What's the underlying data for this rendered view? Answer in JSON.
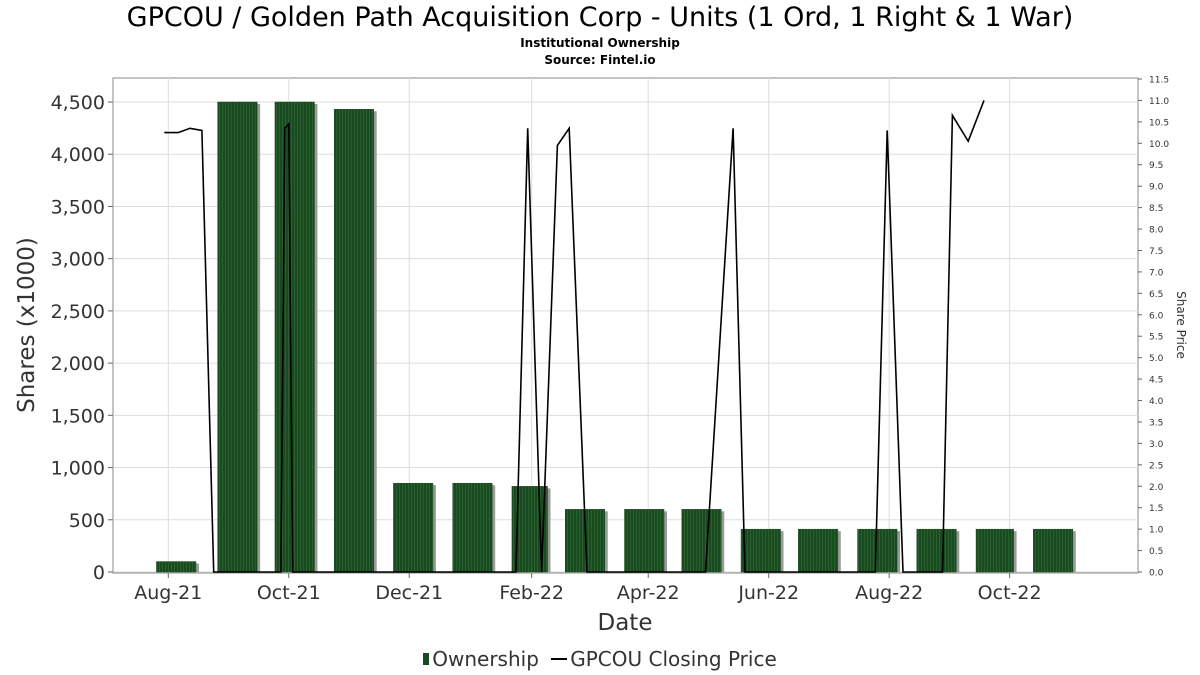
{
  "title": "GPCOU / Golden Path Acquisition Corp - Units (1 Ord, 1 Right & 1 War)",
  "subtitle": "Institutional Ownership",
  "source": "Source: Fintel.io",
  "legend": {
    "ownership": "Ownership",
    "price": "GPCOU Closing Price"
  },
  "colors": {
    "bar": "#1a4a1f",
    "bar_shadow": "#9a9a9a",
    "line": "#000000",
    "grid": "#dddddd"
  },
  "chart_data": {
    "type": "bar",
    "xlabel": "Date",
    "ylabel": "Shares (x1000)",
    "y2label": "Share Price",
    "ylim": [
      0,
      4700
    ],
    "y2lim": [
      0,
      11.5
    ],
    "xlim": [
      "2021-07-04",
      "2022-12-05"
    ],
    "grid": true,
    "legend_position": "bottom",
    "xticks": [
      {
        "date": "2021-08-01",
        "label": "Aug-21"
      },
      {
        "date": "2021-10-01",
        "label": "Oct-21"
      },
      {
        "date": "2021-12-01",
        "label": "Dec-21"
      },
      {
        "date": "2022-02-01",
        "label": "Feb-22"
      },
      {
        "date": "2022-04-01",
        "label": "Apr-22"
      },
      {
        "date": "2022-06-01",
        "label": "Jun-22"
      },
      {
        "date": "2022-08-01",
        "label": "Aug-22"
      },
      {
        "date": "2022-10-01",
        "label": "Oct-22"
      }
    ],
    "yticks": [
      0,
      500,
      1000,
      1500,
      2000,
      2500,
      3000,
      3500,
      4000,
      4500
    ],
    "yticklabels": [
      "0",
      "500",
      "1,000",
      "1,500",
      "2,000",
      "2,500",
      "3,000",
      "3,500",
      "4,000",
      "4,500"
    ],
    "y2ticks": [
      "0.0",
      "0.5",
      "1.0",
      "1.5",
      "2.0",
      "2.5",
      "3.0",
      "3.5",
      "4.0",
      "4.5",
      "5.0",
      "5.5",
      "6.0",
      "6.5",
      "7.0",
      "7.5",
      "8.0",
      "8.5",
      "9.0",
      "9.5",
      "10.0",
      "10.5",
      "11.0",
      "11.5"
    ],
    "series": [
      {
        "name": "Ownership",
        "type": "bar",
        "bars": [
          {
            "start": "2021-07-26",
            "end": "2021-08-15",
            "value": 100
          },
          {
            "start": "2021-08-26",
            "end": "2021-09-15",
            "value": 4500
          },
          {
            "start": "2021-09-24",
            "end": "2021-10-14",
            "value": 4500
          },
          {
            "start": "2021-10-24",
            "end": "2021-11-13",
            "value": 4430
          },
          {
            "start": "2021-11-23",
            "end": "2021-12-13",
            "value": 850
          },
          {
            "start": "2021-12-23",
            "end": "2022-01-12",
            "value": 850
          },
          {
            "start": "2022-01-22",
            "end": "2022-02-09",
            "value": 820
          },
          {
            "start": "2022-02-18",
            "end": "2022-03-10",
            "value": 600
          },
          {
            "start": "2022-03-20",
            "end": "2022-04-09",
            "value": 600
          },
          {
            "start": "2022-04-18",
            "end": "2022-05-08",
            "value": 600
          },
          {
            "start": "2022-05-18",
            "end": "2022-06-07",
            "value": 410
          },
          {
            "start": "2022-06-16",
            "end": "2022-07-06",
            "value": 410
          },
          {
            "start": "2022-07-16",
            "end": "2022-08-05",
            "value": 410
          },
          {
            "start": "2022-08-15",
            "end": "2022-09-04",
            "value": 410
          },
          {
            "start": "2022-09-14",
            "end": "2022-10-03",
            "value": 410
          },
          {
            "start": "2022-10-13",
            "end": "2022-11-02",
            "value": 410
          }
        ]
      },
      {
        "name": "GPCOU Closing Price",
        "type": "line",
        "points": [
          [
            "2021-07-30",
            10.25
          ],
          [
            "2021-08-06",
            10.25
          ],
          [
            "2021-08-12",
            10.35
          ],
          [
            "2021-08-18",
            10.3
          ],
          [
            "2021-08-24",
            0.0
          ],
          [
            "2021-09-27",
            0.0
          ],
          [
            "2021-09-29",
            10.35
          ],
          [
            "2021-10-01",
            10.45
          ],
          [
            "2021-10-03",
            0.0
          ],
          [
            "2022-01-24",
            0.0
          ],
          [
            "2022-01-30",
            10.35
          ],
          [
            "2022-02-06",
            0.0
          ],
          [
            "2022-02-14",
            9.95
          ],
          [
            "2022-02-20",
            10.35
          ],
          [
            "2022-03-01",
            0.0
          ],
          [
            "2022-04-30",
            0.0
          ],
          [
            "2022-05-14",
            10.35
          ],
          [
            "2022-05-20",
            0.0
          ],
          [
            "2022-07-25",
            0.0
          ],
          [
            "2022-07-31",
            10.3
          ],
          [
            "2022-08-08",
            0.0
          ],
          [
            "2022-08-28",
            0.0
          ],
          [
            "2022-09-02",
            10.65
          ],
          [
            "2022-09-10",
            10.05
          ],
          [
            "2022-09-18",
            11.0
          ]
        ]
      }
    ]
  }
}
